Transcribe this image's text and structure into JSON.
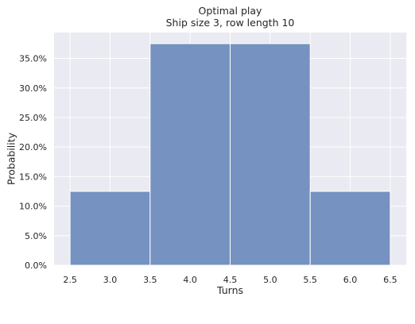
{
  "chart_data": {
    "type": "bar",
    "title": [
      "Optimal play",
      "Ship size 3, row length 10"
    ],
    "xlabel": "Turns",
    "ylabel": "Probability",
    "bins": [
      {
        "x0": 2.5,
        "x1": 3.5,
        "value": 0.125
      },
      {
        "x0": 3.5,
        "x1": 4.5,
        "value": 0.375
      },
      {
        "x0": 4.5,
        "x1": 5.5,
        "value": 0.375
      },
      {
        "x0": 5.5,
        "x1": 6.5,
        "value": 0.125
      }
    ],
    "xticks": [
      2.5,
      3.0,
      3.5,
      4.0,
      4.5,
      5.0,
      5.5,
      6.0,
      6.5
    ],
    "xtick_labels": [
      "2.5",
      "3.0",
      "3.5",
      "4.0",
      "4.5",
      "5.0",
      "5.5",
      "6.0",
      "6.5"
    ],
    "yticks": [
      0,
      0.05,
      0.1,
      0.15,
      0.2,
      0.25,
      0.3,
      0.35
    ],
    "ytick_labels": [
      "0.0%",
      "5.0%",
      "10.0%",
      "15.0%",
      "20.0%",
      "25.0%",
      "30.0%",
      "35.0%"
    ],
    "xlim": [
      2.3,
      6.7
    ],
    "ylim": [
      0,
      0.39375
    ],
    "grid": true,
    "colors": {
      "bar": "#7592c1",
      "background": "#eaeaf2",
      "grid": "#ffffff"
    }
  }
}
